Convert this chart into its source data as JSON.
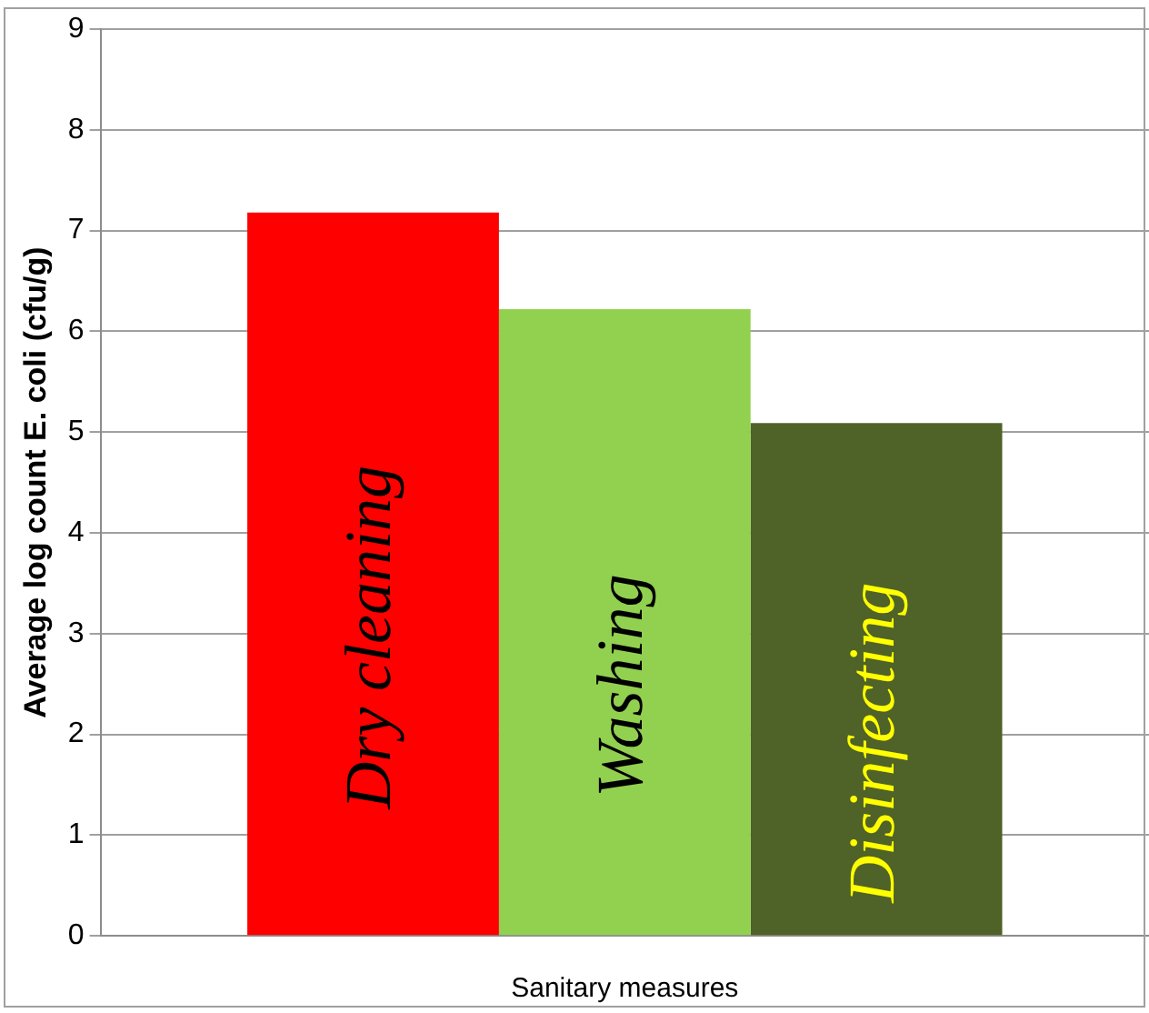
{
  "chart_data": {
    "type": "bar",
    "xlabel": "Sanitary measures",
    "ylabel": "Average log count E. coli (cfu/g)",
    "categories": [
      null
    ],
    "series": [
      {
        "name": "Dry cleaning",
        "color": "#ff0000",
        "values": [
          7.18
        ]
      },
      {
        "name": "Washing",
        "color": "#92d050",
        "values": [
          6.22
        ]
      },
      {
        "name": "Disinfecting",
        "color": "#4f6228",
        "values": [
          5.09
        ]
      }
    ],
    "ylim": [
      0,
      9
    ],
    "yticks": [
      0,
      1,
      2,
      3,
      4,
      5,
      6,
      7,
      8,
      9
    ],
    "grid": "y",
    "legend": false
  }
}
